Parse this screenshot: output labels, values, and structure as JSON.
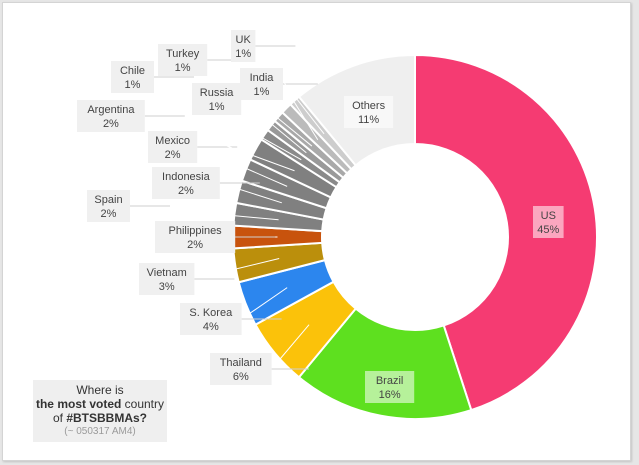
{
  "chart_data": {
    "type": "pie",
    "variant": "donut",
    "slices": [
      {
        "label": "US",
        "pct_label": "45%",
        "value": 45,
        "color": "#f53b72"
      },
      {
        "label": "Brazil",
        "pct_label": "16%",
        "value": 16,
        "color": "#5ee01f"
      },
      {
        "label": "Thailand",
        "pct_label": "6%",
        "value": 6,
        "color": "#fbc20a"
      },
      {
        "label": "S. Korea",
        "pct_label": "4%",
        "value": 4,
        "color": "#2c86ee"
      },
      {
        "label": "Vietnam",
        "pct_label": "3%",
        "value": 3,
        "color": "#bb8f0c"
      },
      {
        "label": "Philippines",
        "pct_label": "2%",
        "value": 2,
        "color": "#c8530d"
      },
      {
        "label": "Spain",
        "pct_label": "2%",
        "value": 2,
        "color": "#808080"
      },
      {
        "label": "Indonesia",
        "pct_label": "2%",
        "value": 2,
        "color": "#808080"
      },
      {
        "label": "Mexico",
        "pct_label": "2%",
        "value": 2,
        "color": "#808080"
      },
      {
        "label": "Argentina",
        "pct_label": "2%",
        "value": 2,
        "color": "#808080"
      },
      {
        "label": "Chile",
        "pct_label": "1%",
        "value": 1,
        "color": "#8a8a8a"
      },
      {
        "label": "Russia",
        "pct_label": "1%",
        "value": 1,
        "color": "#999999"
      },
      {
        "label": "Turkey",
        "pct_label": "1%",
        "value": 1,
        "color": "#a9a9a9"
      },
      {
        "label": "India",
        "pct_label": "1%",
        "value": 1,
        "color": "#bbbbbb"
      },
      {
        "label": "UK",
        "pct_label": "1%",
        "value": 1,
        "color": "#cdcdcd"
      },
      {
        "label": "Others",
        "pct_label": "11%",
        "value": 11,
        "color": "#efefef"
      }
    ]
  },
  "caption": {
    "line1": "Where is",
    "line2_bold": "the most voted",
    "line2_rest": " country",
    "line3_pre": "of ",
    "line3_bold": "#BTSBBMAs?",
    "line4": "(~ 050317 AM4)"
  }
}
